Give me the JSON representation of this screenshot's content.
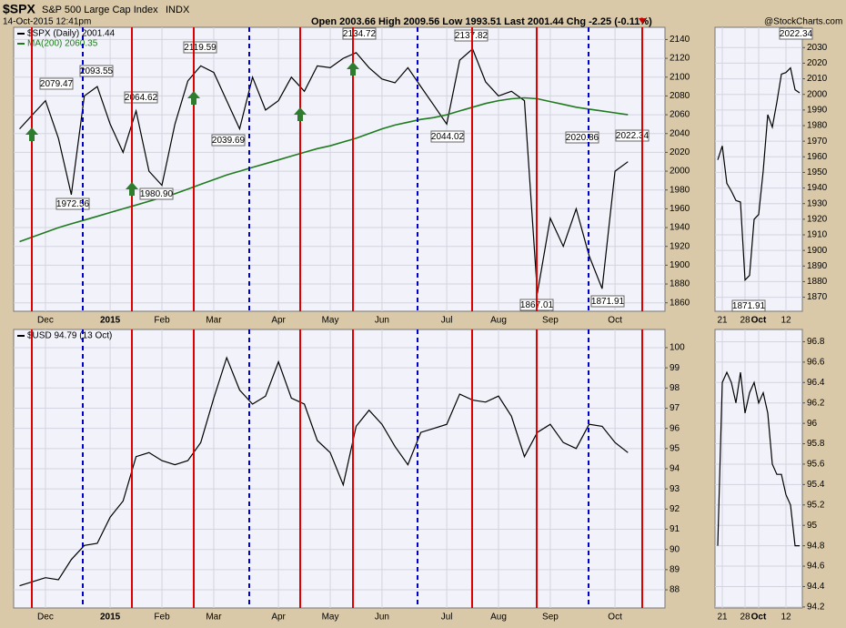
{
  "header": {
    "symbol": "$SPX",
    "name": "S&P 500 Large Cap Index",
    "exchange": "INDX",
    "timestamp": "14-Oct-2015 12:41pm",
    "quote": "Open 2003.66  High 2009.56  Low 1993.51  Last 2001.44  Chg -2.25 (-0.11%)",
    "credit": "@StockCharts.com"
  },
  "chart_data": [
    {
      "type": "line",
      "categories": [
        null,
        null,
        "Dec",
        null,
        null,
        null,
        null,
        "2015",
        null,
        null,
        null,
        "Feb",
        null,
        null,
        null,
        "Mar",
        null,
        null,
        null,
        null,
        "Apr",
        null,
        null,
        null,
        "May",
        null,
        null,
        null,
        "Jun",
        null,
        null,
        null,
        null,
        "Jul",
        null,
        null,
        null,
        "Aug",
        null,
        null,
        null,
        "Sep",
        null,
        null,
        null,
        null,
        "Oct",
        null
      ],
      "series": [
        {
          "name": "$SPX (Daily) 2001.44",
          "color": "#000000",
          "values": [
            2045,
            2060,
            2075,
            2035,
            1975,
            2080,
            2090,
            2050,
            2020,
            2064,
            2000,
            1985,
            2050,
            2096,
            2112,
            2105,
            2075,
            2045,
            2100,
            2065,
            2075,
            2100,
            2085,
            2112,
            2110,
            2120,
            2126,
            2110,
            2098,
            2094,
            2110,
            2090,
            2070,
            2050,
            2118,
            2130,
            2095,
            2080,
            2085,
            2075,
            1870,
            1950,
            1920,
            1960,
            1910,
            1875,
            2000,
            2010
          ]
        },
        {
          "name": "MA(200) 2060.35",
          "color": "#1e7b1e",
          "values": [
            1925,
            1930,
            1935,
            1940,
            1944,
            1948,
            1952,
            1956,
            1960,
            1964,
            1968,
            1972,
            1976,
            1981,
            1986,
            1991,
            1996,
            2000,
            2004,
            2008,
            2012,
            2016,
            2020,
            2024,
            2027,
            2031,
            2035,
            2040,
            2045,
            2049,
            2052,
            2055,
            2057,
            2060,
            2064,
            2068,
            2072,
            2075,
            2077,
            2078,
            2077,
            2074,
            2071,
            2068,
            2066,
            2064,
            2062,
            2060
          ]
        }
      ],
      "ylim": [
        1851,
        2153
      ],
      "yticks": [
        1860,
        1880,
        1900,
        1920,
        1940,
        1960,
        1980,
        2000,
        2020,
        2040,
        2060,
        2080,
        2100,
        2120,
        2140
      ],
      "grid": true,
      "annotations": [
        "1972.56",
        "2079.47",
        "2093.55",
        "2064.62",
        "1980.90",
        "2119.59",
        "2039.69",
        "2134.72",
        "2137.82",
        "2044.02",
        "1867.01",
        "2020.86",
        "2022.34",
        "1871.91"
      ]
    },
    {
      "type": "line",
      "categories": [
        null,
        null,
        "Dec",
        null,
        null,
        null,
        null,
        "2015",
        null,
        null,
        null,
        "Feb",
        null,
        null,
        null,
        "Mar",
        null,
        null,
        null,
        null,
        "Apr",
        null,
        null,
        null,
        "May",
        null,
        null,
        null,
        "Jun",
        null,
        null,
        null,
        null,
        "Jul",
        null,
        null,
        null,
        "Aug",
        null,
        null,
        null,
        "Sep",
        null,
        null,
        null,
        null,
        "Oct",
        null
      ],
      "series": [
        {
          "name": "$USD 94.79 (13 Oct)",
          "color": "#000000",
          "values": [
            88.2,
            88.4,
            88.6,
            88.5,
            89.5,
            90.2,
            90.3,
            91.6,
            92.4,
            94.6,
            94.8,
            94.4,
            94.2,
            94.4,
            95.3,
            97.5,
            99.5,
            97.9,
            97.2,
            97.6,
            99.3,
            97.5,
            97.2,
            95.4,
            94.8,
            93.2,
            96.1,
            96.9,
            96.2,
            95.1,
            94.2,
            95.8,
            96.0,
            96.2,
            97.7,
            97.4,
            97.3,
            97.6,
            96.6,
            94.6,
            95.8,
            96.2,
            95.3,
            95.0,
            96.2,
            96.1,
            95.3,
            94.8
          ]
        }
      ],
      "ylim": [
        87.1,
        100.9
      ],
      "yticks": [
        88,
        89,
        90,
        91,
        92,
        93,
        94,
        95,
        96,
        97,
        98,
        99,
        100
      ],
      "grid": true
    },
    {
      "type": "line",
      "categories": [
        null,
        "21",
        null,
        null,
        null,
        null,
        "28",
        null,
        null,
        "Oct",
        null,
        null,
        null,
        null,
        null,
        "12",
        null,
        null,
        null
      ],
      "series": [
        {
          "color": "#000000",
          "values": [
            1958,
            1967,
            1943,
            1938,
            1932,
            1931,
            1881,
            1884,
            1920,
            1923,
            1951,
            1987,
            1979,
            1995,
            2013,
            2014,
            2017,
            2003,
            2001
          ]
        }
      ],
      "ylim": [
        1861,
        2043
      ],
      "yticks": [
        1870,
        1880,
        1890,
        1900,
        1910,
        1920,
        1930,
        1940,
        1950,
        1960,
        1970,
        1980,
        1990,
        2000,
        2010,
        2020,
        2030
      ],
      "grid": true,
      "annotations": [
        "2022.34",
        "1871.91"
      ]
    },
    {
      "type": "line",
      "categories": [
        null,
        "21",
        null,
        null,
        null,
        null,
        "28",
        null,
        null,
        "Oct",
        null,
        null,
        null,
        null,
        null,
        "12",
        null,
        null,
        null
      ],
      "series": [
        {
          "color": "#000000",
          "values": [
            94.8,
            96.4,
            96.5,
            96.4,
            96.2,
            96.5,
            96.1,
            96.3,
            96.4,
            96.2,
            96.3,
            96.1,
            95.6,
            95.5,
            95.5,
            95.3,
            95.2,
            94.8,
            94.8
          ]
        }
      ],
      "ylim": [
        94.19,
        96.92
      ],
      "yticks": [
        94.2,
        94.4,
        94.6,
        94.8,
        95.0,
        95.2,
        95.4,
        95.6,
        95.8,
        96.0,
        96.2,
        96.4,
        96.6,
        96.8
      ],
      "grid": true
    }
  ]
}
